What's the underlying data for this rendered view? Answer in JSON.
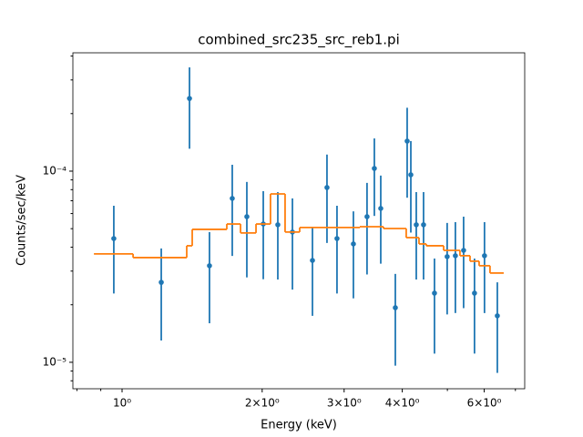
{
  "chart_data": {
    "type": "scatter",
    "title": "combined_src235_src_reb1.pi",
    "xlabel": "Energy (keV)",
    "ylabel": "Counts/sec/keV",
    "xscale": "log",
    "yscale": "log",
    "xlim": [
      0.784,
      7.33
    ],
    "ylim": [
      7.27e-06,
      0.000416
    ],
    "xticks": [
      {
        "value": 1,
        "label": "10⁰"
      },
      {
        "value": 2,
        "label": "2×10⁰"
      },
      {
        "value": 3,
        "label": "3×10⁰"
      },
      {
        "value": 4,
        "label": "4×10⁰"
      },
      {
        "value": 6,
        "label": "6×10⁰"
      }
    ],
    "xminorticks": [
      0.8,
      0.9,
      5,
      7
    ],
    "yticks": [
      {
        "value": 1e-05,
        "label": "10⁻⁵"
      },
      {
        "value": 0.0001,
        "label": "10⁻⁴"
      }
    ],
    "yminorticks": [
      8e-06,
      9e-06,
      2e-05,
      3e-05,
      4e-05,
      5e-05,
      6e-05,
      7e-05,
      8e-05,
      9e-05,
      0.0002,
      0.0003,
      0.0004
    ],
    "series": [
      {
        "type": "errorbar",
        "color": "#1f77b4",
        "x": [
          0.96,
          1.214,
          1.396,
          1.541,
          1.725,
          1.854,
          2.011,
          2.161,
          2.323,
          2.565,
          2.756,
          2.896,
          3.141,
          3.36,
          3.484,
          3.596,
          3.865,
          4.098,
          4.173,
          4.287,
          4.444,
          4.691,
          4.995,
          5.202,
          5.418,
          5.718,
          6.008,
          6.402
        ],
        "values": [
          4.44e-05,
          2.62e-05,
          0.00024,
          3.2e-05,
          7.2e-05,
          5.78e-05,
          5.29e-05,
          5.24e-05,
          4.8e-05,
          3.41e-05,
          8.21e-05,
          4.44e-05,
          4.16e-05,
          5.78e-05,
          0.0001033,
          6.38e-05,
          1.93e-05,
          0.0001436,
          9.57e-05,
          5.24e-05,
          5.24e-05,
          2.3e-05,
          3.57e-05,
          3.61e-05,
          3.85e-05,
          2.3e-05,
          3.61e-05,
          1.75e-05
        ],
        "errors": [
          2.15e-05,
          1.32e-05,
          0.000109,
          1.6e-05,
          3.6e-05,
          3e-05,
          2.57e-05,
          2.53e-05,
          2.4e-05,
          1.66e-05,
          4e-05,
          2.15e-05,
          2e-05,
          2.9e-05,
          4.5e-05,
          3.1e-05,
          9.7e-06,
          7.1e-05,
          4.8e-05,
          2.53e-05,
          2.53e-05,
          1.19e-05,
          1.79e-05,
          1.8e-05,
          1.93e-05,
          1.19e-05,
          1.8e-05,
          8.7e-06
        ]
      },
      {
        "type": "step",
        "color": "#ff7f0e",
        "bins": [
          0.87,
          1.056,
          1.377,
          1.415,
          1.679,
          1.797,
          1.94,
          2.084,
          2.24,
          2.408,
          3.242,
          3.645,
          4.079,
          4.345,
          4.505,
          4.908,
          5.321,
          5.593,
          5.85,
          6.174,
          6.607
        ],
        "values": [
          3.69e-05,
          3.53e-05,
          4.07e-05,
          4.96e-05,
          5.29e-05,
          4.75e-05,
          5.29e-05,
          7.6e-05,
          4.8e-05,
          5.07e-05,
          5.12e-05,
          5.01e-05,
          4.49e-05,
          4.16e-05,
          4.07e-05,
          3.85e-05,
          3.61e-05,
          3.38e-05,
          3.2e-05,
          2.93e-05
        ]
      }
    ]
  }
}
